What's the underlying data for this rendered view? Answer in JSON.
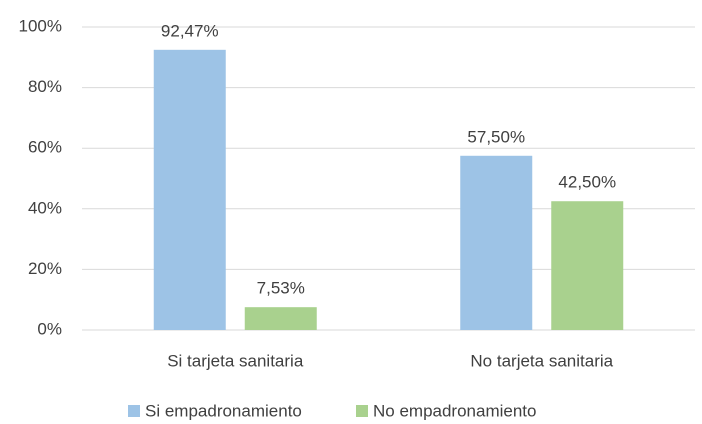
{
  "chart_data": {
    "type": "bar",
    "categories": [
      "Si tarjeta sanitaria",
      "No tarjeta sanitaria"
    ],
    "series": [
      {
        "name": "Si empadronamiento",
        "color": "#9dc3e6",
        "values": [
          92.47,
          57.5
        ],
        "value_labels": [
          "92,47%",
          "57,50%"
        ]
      },
      {
        "name": "No empadronamiento",
        "color": "#a9d18e",
        "values": [
          7.53,
          42.5
        ],
        "value_labels": [
          "7,53%",
          "42,50%"
        ]
      }
    ],
    "ylim": [
      0,
      100
    ],
    "yticks": [
      {
        "value": 0,
        "label": "0%"
      },
      {
        "value": 20,
        "label": "20%"
      },
      {
        "value": 40,
        "label": "40%"
      },
      {
        "value": 60,
        "label": "60%"
      },
      {
        "value": 80,
        "label": "80%"
      },
      {
        "value": 100,
        "label": "100%"
      }
    ],
    "grid": true,
    "legend": "bottom"
  }
}
